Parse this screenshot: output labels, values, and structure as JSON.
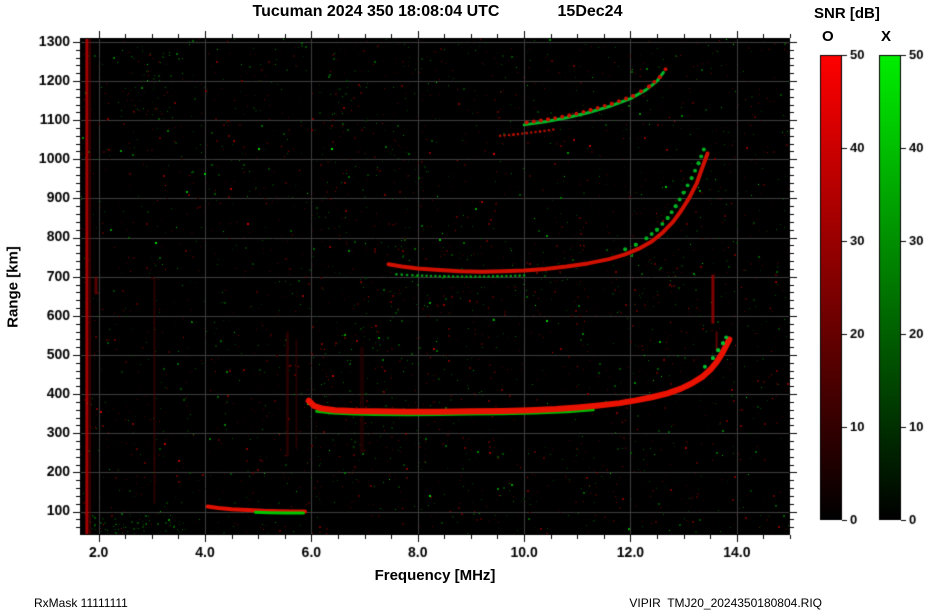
{
  "title": {
    "main": "Tucuman 2024 350 18:08:04 UTC",
    "date": "15Dec24"
  },
  "axes": {
    "x_label": "Frequency [MHz]",
    "y_label": "Range [km]"
  },
  "footer": {
    "left": "RxMask 11111111",
    "right": "VIPIR  TMJ20_2024350180804.RIQ"
  },
  "colorbar": {
    "title": "SNR [dB]",
    "o_label": "O",
    "x_label": "X",
    "max": 50,
    "ticks": [
      0,
      10,
      20,
      30,
      40,
      50
    ],
    "o_color": "#ff0000",
    "x_color": "#00ee00"
  },
  "chart_data": {
    "type": "heatmap",
    "title": "Tucuman 2024 350 18:08:04 UTC 15Dec24",
    "xlabel": "Frequency [MHz]",
    "ylabel": "Range [km]",
    "xlim": [
      1.65,
      15.0
    ],
    "ylim": [
      40,
      1310
    ],
    "x_ticks_major": [
      2,
      4,
      6,
      8,
      10,
      12,
      14
    ],
    "x_tick_labels": [
      "2.0",
      "4.0",
      "6.0",
      "8.0",
      "10.0",
      "12.0",
      "14.0"
    ],
    "x_minor_step": 0.5,
    "y_ticks_major": [
      100,
      200,
      300,
      400,
      500,
      600,
      700,
      800,
      900,
      1000,
      1100,
      1200,
      1300
    ],
    "y_tick_labels": [
      "100",
      "200",
      "300",
      "400",
      "500",
      "600",
      "700",
      "800",
      "900",
      "1000",
      "1100",
      "1200",
      "1300"
    ],
    "y_minor_step": 20,
    "grid": true,
    "grid_color": "#3d3d3d",
    "background": "#000000",
    "legend": "O-mode echoes red, X-mode echoes green, SNR scale 0-50 dB",
    "traces": [
      {
        "name": "E-layer-o",
        "color": "#e01000",
        "width": 4,
        "style": "line",
        "points": [
          [
            4.05,
            113
          ],
          [
            4.25,
            109
          ],
          [
            4.5,
            106
          ],
          [
            4.8,
            104
          ],
          [
            5.1,
            102
          ],
          [
            5.4,
            101
          ],
          [
            5.7,
            100
          ],
          [
            5.88,
            100
          ]
        ]
      },
      {
        "name": "E-layer-x",
        "color": "#00c800",
        "width": 3,
        "style": "line",
        "points": [
          [
            4.95,
            98
          ],
          [
            5.2,
            97
          ],
          [
            5.5,
            96
          ],
          [
            5.85,
            96
          ]
        ]
      },
      {
        "name": "F-trace-x-fringe",
        "color": "#00bb00",
        "width": 3,
        "style": "line",
        "points": [
          [
            6.1,
            356
          ],
          [
            6.4,
            352
          ],
          [
            6.8,
            349
          ],
          [
            7.2,
            348
          ],
          [
            7.8,
            347
          ],
          [
            8.4,
            348
          ],
          [
            9.0,
            349
          ],
          [
            9.6,
            350
          ],
          [
            10.2,
            352
          ],
          [
            10.8,
            355
          ],
          [
            11.3,
            360
          ]
        ]
      },
      {
        "name": "F-trace-o",
        "color": "#ea1200",
        "width": 6,
        "style": "line",
        "points": [
          [
            5.95,
            383
          ],
          [
            6.05,
            370
          ],
          [
            6.2,
            363
          ],
          [
            6.45,
            359
          ],
          [
            6.8,
            357
          ],
          [
            7.2,
            356
          ],
          [
            7.8,
            355
          ],
          [
            8.4,
            355
          ],
          [
            9.0,
            356
          ],
          [
            9.6,
            357
          ],
          [
            10.1,
            359
          ],
          [
            10.6,
            362
          ],
          [
            11.0,
            366
          ],
          [
            11.4,
            371
          ],
          [
            11.8,
            377
          ],
          [
            12.1,
            384
          ],
          [
            12.4,
            392
          ],
          [
            12.7,
            402
          ],
          [
            12.95,
            414
          ],
          [
            13.15,
            427
          ],
          [
            13.35,
            444
          ],
          [
            13.5,
            462
          ],
          [
            13.62,
            482
          ],
          [
            13.72,
            503
          ],
          [
            13.8,
            524
          ],
          [
            13.86,
            540
          ]
        ]
      },
      {
        "name": "F-trace-x-tip",
        "color": "#00c030",
        "width": 3,
        "style": "dots",
        "points": [
          [
            13.4,
            470
          ],
          [
            13.55,
            492
          ],
          [
            13.65,
            512
          ],
          [
            13.74,
            530
          ],
          [
            13.8,
            545
          ]
        ]
      },
      {
        "name": "hop2-o",
        "color": "#d01000",
        "width": 4,
        "style": "line",
        "points": [
          [
            7.45,
            732
          ],
          [
            7.7,
            726
          ],
          [
            8.0,
            721
          ],
          [
            8.4,
            717
          ],
          [
            8.8,
            714
          ],
          [
            9.2,
            713
          ],
          [
            9.6,
            714
          ],
          [
            10.0,
            716
          ],
          [
            10.4,
            720
          ],
          [
            10.8,
            726
          ],
          [
            11.2,
            734
          ],
          [
            11.6,
            745
          ],
          [
            11.9,
            757
          ],
          [
            12.15,
            771
          ],
          [
            12.4,
            790
          ],
          [
            12.6,
            812
          ],
          [
            12.8,
            840
          ],
          [
            12.95,
            868
          ],
          [
            13.1,
            900
          ],
          [
            13.25,
            940
          ],
          [
            13.35,
            978
          ],
          [
            13.45,
            1015
          ]
        ]
      },
      {
        "name": "hop2-x",
        "color": "#00b020",
        "width": 3,
        "style": "dots",
        "points": [
          [
            11.9,
            770
          ],
          [
            12.1,
            782
          ],
          [
            12.3,
            798
          ],
          [
            12.5,
            820
          ],
          [
            12.7,
            850
          ],
          [
            12.85,
            880
          ],
          [
            13.0,
            915
          ],
          [
            13.15,
            952
          ],
          [
            13.28,
            990
          ],
          [
            13.38,
            1025
          ]
        ]
      },
      {
        "name": "hop2-x-low",
        "color": "#009917",
        "width": 2,
        "style": "dots",
        "points": [
          [
            7.6,
            706
          ],
          [
            8.0,
            703
          ],
          [
            8.5,
            701
          ],
          [
            9.0,
            700
          ],
          [
            9.5,
            701
          ],
          [
            10.0,
            703
          ]
        ]
      },
      {
        "name": "hop3-flat-o",
        "color": "#b01000",
        "width": 2,
        "style": "dots",
        "points": [
          [
            9.55,
            1060
          ],
          [
            9.8,
            1063
          ],
          [
            10.05,
            1067
          ],
          [
            10.3,
            1071
          ],
          [
            10.55,
            1076
          ]
        ]
      },
      {
        "name": "hop3-x",
        "color": "#00b828",
        "width": 3,
        "style": "line",
        "points": [
          [
            10.0,
            1088
          ],
          [
            10.4,
            1096
          ],
          [
            10.8,
            1106
          ],
          [
            11.2,
            1119
          ],
          [
            11.6,
            1135
          ],
          [
            12.0,
            1155
          ],
          [
            12.3,
            1178
          ],
          [
            12.5,
            1200
          ],
          [
            12.62,
            1222
          ]
        ]
      },
      {
        "name": "hop3-o",
        "color": "#c81200",
        "width": 3,
        "style": "dots",
        "points": [
          [
            10.05,
            1094
          ],
          [
            10.45,
            1102
          ],
          [
            10.85,
            1112
          ],
          [
            11.25,
            1126
          ],
          [
            11.65,
            1142
          ],
          [
            12.05,
            1162
          ],
          [
            12.35,
            1186
          ],
          [
            12.55,
            1210
          ],
          [
            12.66,
            1230
          ]
        ]
      }
    ],
    "interference_lines": [
      {
        "freq": 1.78,
        "y0": 40,
        "y1": 1310,
        "color": "#c00000",
        "width": 3,
        "alpha": 0.85
      },
      {
        "freq": 1.84,
        "y0": 40,
        "y1": 1310,
        "color": "#700000",
        "width": 2,
        "alpha": 0.5
      },
      {
        "freq": 1.95,
        "y0": 655,
        "y1": 700,
        "color": "#900000",
        "width": 3,
        "alpha": 0.6
      },
      {
        "freq": 3.05,
        "y0": 120,
        "y1": 700,
        "color": "#5a0000",
        "width": 2,
        "alpha": 0.45
      },
      {
        "freq": 5.55,
        "y0": 240,
        "y1": 560,
        "color": "#5f0000",
        "width": 3,
        "alpha": 0.4
      },
      {
        "freq": 5.72,
        "y0": 260,
        "y1": 540,
        "color": "#540000",
        "width": 2,
        "alpha": 0.4
      },
      {
        "freq": 6.95,
        "y0": 250,
        "y1": 520,
        "color": "#500000",
        "width": 4,
        "alpha": 0.35
      },
      {
        "freq": 13.55,
        "y0": 580,
        "y1": 705,
        "color": "#aa0000",
        "width": 3,
        "alpha": 0.75
      },
      {
        "freq": 13.62,
        "y0": 510,
        "y1": 560,
        "color": "#990000",
        "width": 2,
        "alpha": 0.6
      }
    ],
    "noise": {
      "seed": 12345,
      "count": 2800,
      "red_fraction": 0.6,
      "bright_count": 140,
      "clusters": [
        {
          "f0": 1.8,
          "f1": 3.6,
          "r0": 45,
          "r1": 100,
          "count": 70,
          "kind": "x"
        },
        {
          "f0": 5.9,
          "f1": 8.2,
          "r0": 60,
          "r1": 1290,
          "count": 220,
          "kind": "mix"
        },
        {
          "f0": 2.6,
          "f1": 3.4,
          "r0": 1100,
          "r1": 1290,
          "count": 40,
          "kind": "x"
        },
        {
          "f0": 9.0,
          "f1": 13.0,
          "r0": 640,
          "r1": 760,
          "count": 60,
          "kind": "mix"
        }
      ]
    }
  }
}
